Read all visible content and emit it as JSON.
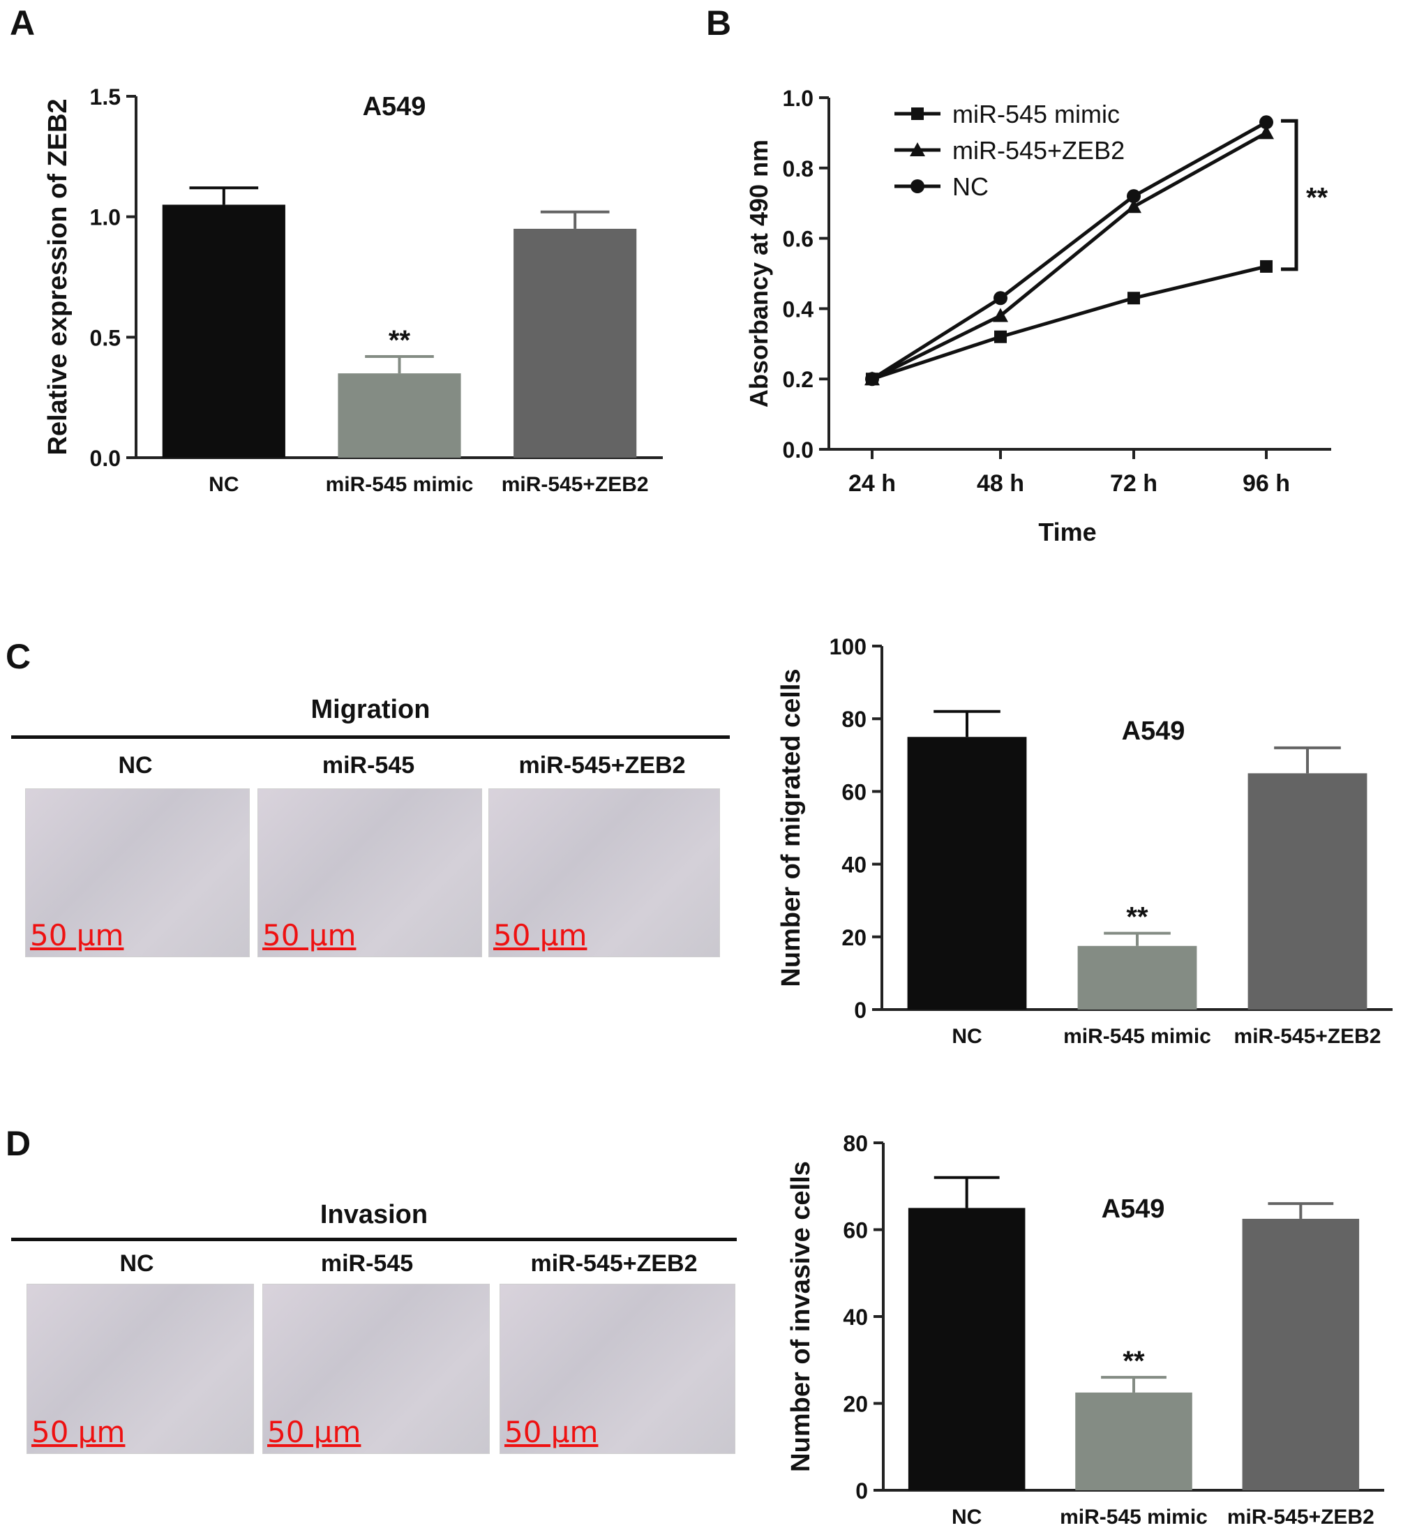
{
  "panel_letters": {
    "a": "A",
    "b": "B",
    "c": "C",
    "d": "D"
  },
  "migration": {
    "title": "Migration",
    "columns": [
      "NC",
      "miR-545",
      "miR-545+ZEB2"
    ],
    "scale_bar": "50 μm"
  },
  "invasion": {
    "title": "Invasion",
    "columns": [
      "NC",
      "miR-545",
      "miR-545+ZEB2"
    ],
    "scale_bar": "50 μm"
  },
  "colors": {
    "nc_bar": "#0d0d0d",
    "mimic_bar": "#848c84",
    "zeb2_bar": "#646464",
    "axis": "#222222"
  },
  "chart_data": [
    {
      "id": "A",
      "type": "bar",
      "title": "A549",
      "ylabel": "Relative expression of ZEB2",
      "xlabel": "",
      "categories": [
        "NC",
        "miR-545 mimic",
        "miR-545+ZEB2"
      ],
      "values": [
        1.05,
        0.35,
        0.95
      ],
      "errors": [
        0.07,
        0.07,
        0.07
      ],
      "significance": [
        "",
        "**",
        ""
      ],
      "ylim": [
        0,
        1.5
      ],
      "yticks": [
        0.0,
        0.5,
        1.0,
        1.5
      ],
      "ytick_labels": [
        "0.0",
        "0.5",
        "1.0",
        "1.5"
      ],
      "grid": false
    },
    {
      "id": "B",
      "type": "line",
      "title": "",
      "ylabel": "Absorbancy at 490 nm",
      "xlabel": "Time",
      "categories": [
        "24 h",
        "48 h",
        "72 h",
        "96 h"
      ],
      "series": [
        {
          "name": "miR-545 mimic",
          "marker": "square",
          "values": [
            0.2,
            0.32,
            0.43,
            0.52
          ]
        },
        {
          "name": "miR-545+ZEB2",
          "marker": "triangle",
          "values": [
            0.2,
            0.38,
            0.69,
            0.9
          ]
        },
        {
          "name": "NC",
          "marker": "circle",
          "values": [
            0.2,
            0.43,
            0.72,
            0.93
          ]
        }
      ],
      "annotation": "**",
      "ylim": [
        0,
        1.0
      ],
      "yticks": [
        0.0,
        0.2,
        0.4,
        0.6,
        0.8,
        1.0
      ],
      "ytick_labels": [
        "0.0",
        "0.2",
        "0.4",
        "0.6",
        "0.8",
        "1.0"
      ],
      "legend": "top-left",
      "grid": false
    },
    {
      "id": "C",
      "type": "bar",
      "title": "A549",
      "ylabel": "Number of migrated cells",
      "xlabel": "",
      "categories": [
        "NC",
        "miR-545 mimic",
        "miR-545+ZEB2"
      ],
      "values": [
        75,
        17.5,
        65
      ],
      "errors": [
        7,
        3.5,
        7
      ],
      "significance": [
        "",
        "**",
        ""
      ],
      "ylim": [
        0,
        100
      ],
      "yticks": [
        0,
        20,
        40,
        60,
        80,
        100
      ],
      "ytick_labels": [
        "0",
        "20",
        "40",
        "60",
        "80",
        "100"
      ],
      "grid": false
    },
    {
      "id": "D",
      "type": "bar",
      "title": "A549",
      "ylabel": "Number of invasive cells",
      "xlabel": "",
      "categories": [
        "NC",
        "miR-545 mimic",
        "miR-545+ZEB2"
      ],
      "values": [
        65,
        22.5,
        62.5
      ],
      "errors": [
        7,
        3.5,
        3.5
      ],
      "significance": [
        "",
        "**",
        ""
      ],
      "ylim": [
        0,
        80
      ],
      "yticks": [
        0,
        20,
        40,
        60,
        80
      ],
      "ytick_labels": [
        "0",
        "20",
        "40",
        "60",
        "80"
      ],
      "grid": false
    }
  ]
}
